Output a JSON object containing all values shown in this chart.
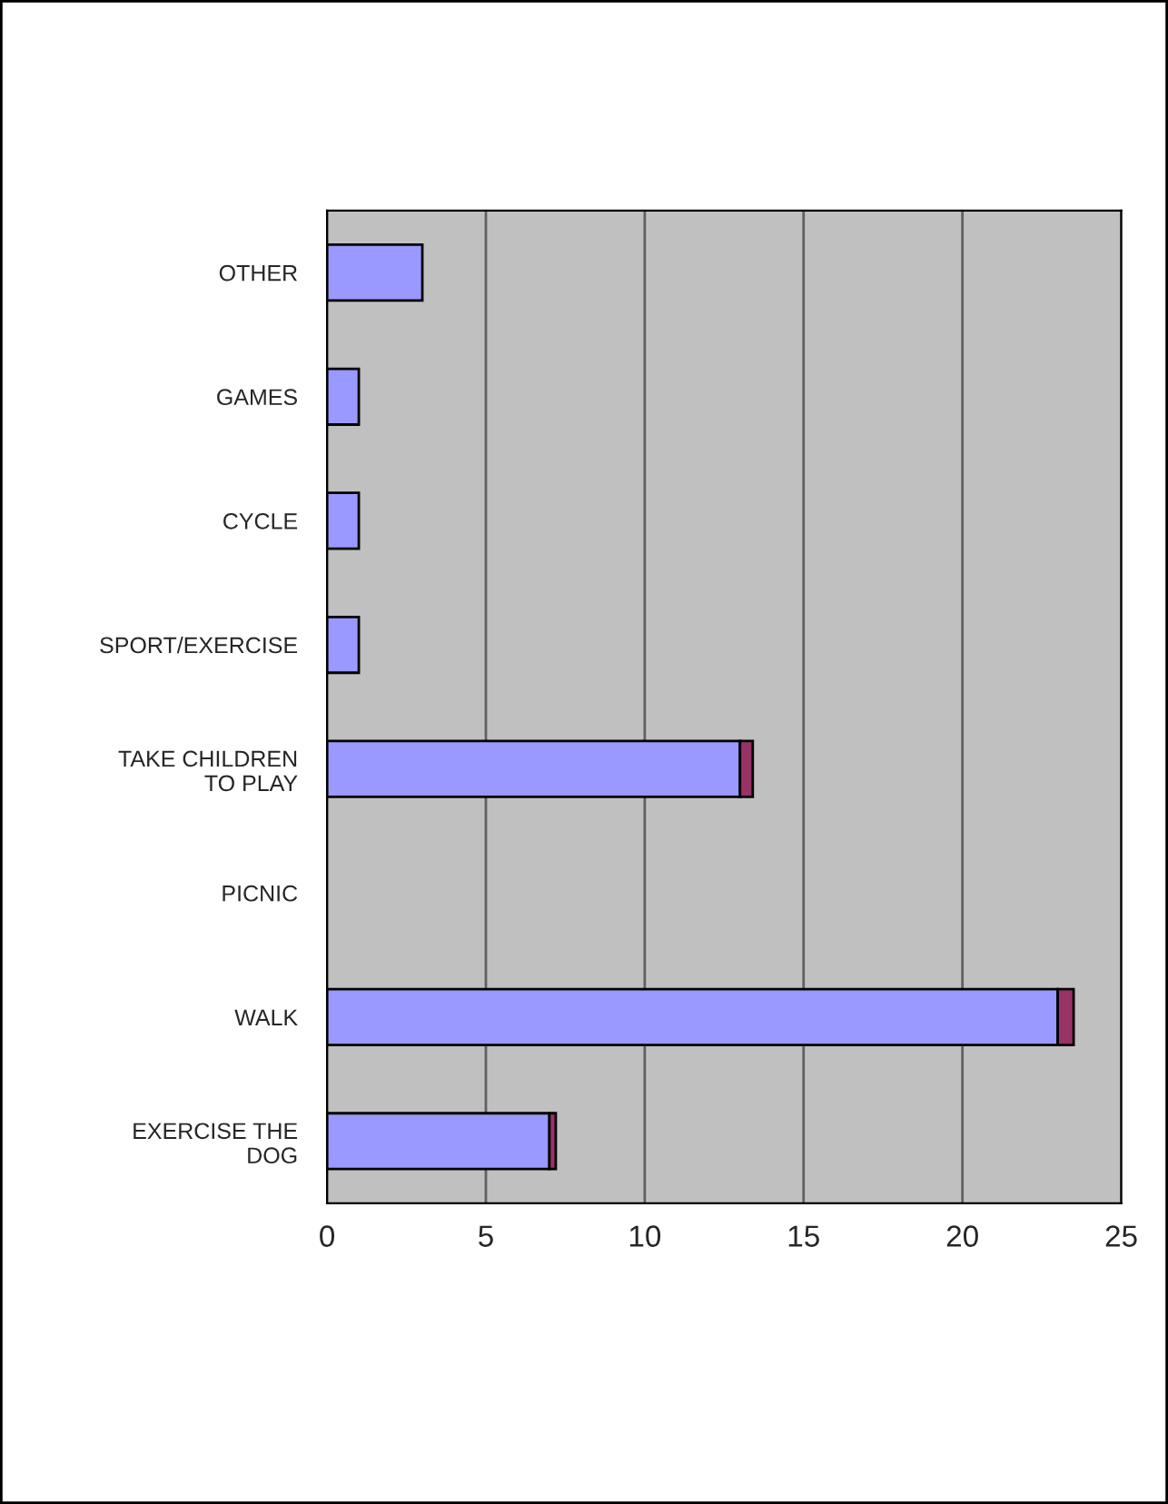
{
  "chart_data": {
    "type": "bar",
    "orientation": "horizontal",
    "stacked": true,
    "categories": [
      "OTHER",
      "GAMES",
      "CYCLE",
      "SPORT/EXERCISE",
      "TAKE CHILDREN\nTO PLAY",
      "PICNIC",
      "WALK",
      "EXERCISE THE\nDOG"
    ],
    "series": [
      {
        "color": "#9999ff",
        "values": [
          3,
          1,
          1,
          1,
          13,
          0,
          23,
          7
        ]
      },
      {
        "color": "#993366",
        "values": [
          0,
          0,
          0,
          0,
          0.4,
          0,
          0.5,
          0.2
        ]
      }
    ],
    "xlim": [
      0,
      25
    ],
    "xticks": [
      0,
      5,
      10,
      15,
      20,
      25
    ],
    "grid": "x"
  }
}
